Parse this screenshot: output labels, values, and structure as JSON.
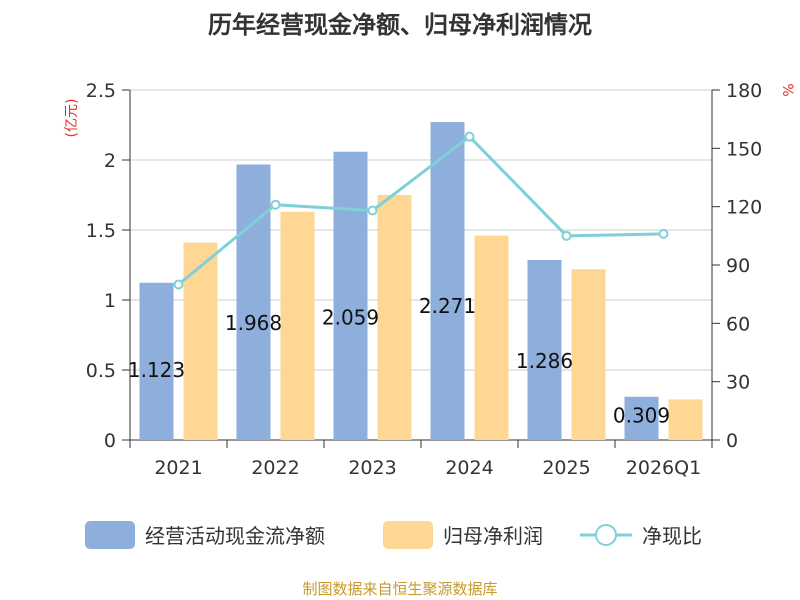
{
  "chart_data": {
    "type": "bar",
    "title": "历年经营现金净额、归母净利润情况",
    "categories": [
      "2021",
      "2022",
      "2023",
      "2024",
      "2025",
      "2026Q1"
    ],
    "series": [
      {
        "name": "经营活动现金流净额",
        "type": "bar",
        "axis": "left",
        "values": [
          1.123,
          1.968,
          2.059,
          2.271,
          1.286,
          0.309
        ],
        "labels": [
          "1.123",
          "1.968",
          "2.059",
          "2.271",
          "1.286",
          "0.309"
        ]
      },
      {
        "name": "归母净利润",
        "type": "bar",
        "axis": "left",
        "values": [
          1.41,
          1.63,
          1.75,
          1.46,
          1.22,
          0.29
        ]
      },
      {
        "name": "净现比",
        "type": "line",
        "axis": "right",
        "values": [
          80,
          121,
          118,
          156,
          105,
          106
        ]
      }
    ],
    "ylabel": "(亿元)",
    "y2label": "%",
    "ylim": [
      0,
      2.5
    ],
    "y2lim": [
      0,
      180
    ],
    "yticks": [
      "0",
      "0.5",
      "1",
      "1.5",
      "2",
      "2.5"
    ],
    "y2ticks": [
      "0",
      "30",
      "60",
      "90",
      "120",
      "150",
      "180"
    ],
    "grid": true,
    "legend_position": "bottom",
    "colors": {
      "bar1": "#8eaedc",
      "bar2": "#ffd795",
      "line": "#7fd0d8",
      "unit": "#e0302a",
      "source": "#c79a2a"
    }
  },
  "source": "制图数据来自恒生聚源数据库"
}
